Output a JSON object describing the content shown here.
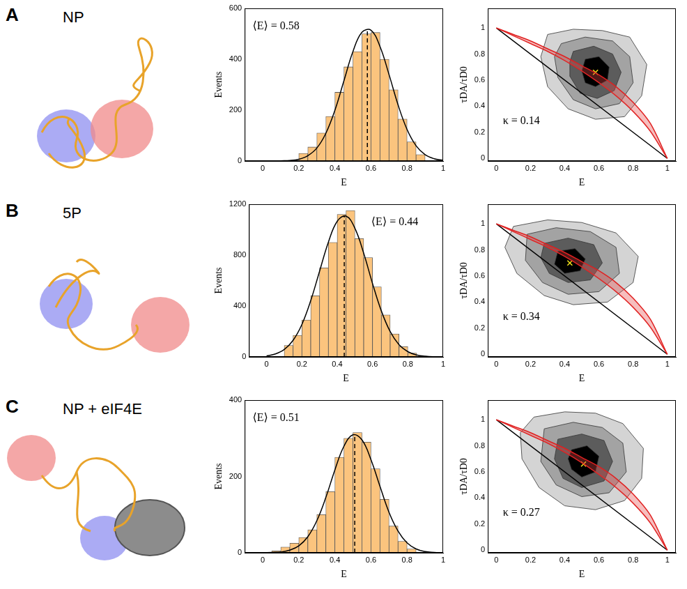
{
  "chart_data": [
    {
      "type": "histogram",
      "panel": "A",
      "title": "NP",
      "xlabel": "E",
      "ylabel": "Events",
      "color": "#fbc47e",
      "grid": false,
      "bins": [
        0.2,
        0.25,
        0.3,
        0.35,
        0.4,
        0.45,
        0.5,
        0.55,
        0.6,
        0.65,
        0.7,
        0.75,
        0.8,
        0.85,
        0.9
      ],
      "counts": [
        30,
        55,
        110,
        175,
        270,
        370,
        430,
        500,
        505,
        400,
        280,
        165,
        75,
        25
      ],
      "fit": {
        "x": [
          0,
          0.05,
          0.1,
          0.15,
          0.2,
          0.25,
          0.3,
          0.35,
          0.4,
          0.45,
          0.5,
          0.55,
          0.6,
          0.65,
          0.7,
          0.75,
          0.8,
          0.85,
          0.9,
          0.95,
          1
        ],
        "y": [
          0,
          0,
          1,
          2,
          7,
          21,
          51,
          109,
          199,
          315,
          430,
          506,
          514,
          450,
          340,
          221,
          124,
          60,
          25,
          9,
          3
        ]
      },
      "mean": 0.58,
      "annotation": "⟨E⟩ = 0.58",
      "xlim": [
        -0.1,
        1
      ],
      "xticks": [
        0,
        0.2,
        0.4,
        0.6,
        0.8,
        1
      ],
      "ylim": [
        0,
        600
      ],
      "yticks": [
        0,
        200,
        400,
        600
      ]
    },
    {
      "type": "contour",
      "xlabel": "E",
      "ylabel": "τDA/τD0",
      "grid": false,
      "xlim": [
        -0.05,
        1.05
      ],
      "xticks": [
        0,
        0.2,
        0.4,
        0.6,
        0.8,
        1
      ],
      "ylim": [
        -0.02,
        1.15
      ],
      "yticks": [
        0,
        0.2,
        0.4,
        0.6,
        0.8,
        1
      ],
      "contours": [
        [
          [
            0.3,
            0.95
          ],
          [
            0.45,
            0.99
          ],
          [
            0.62,
            0.98
          ],
          [
            0.78,
            0.93
          ],
          [
            0.88,
            0.72
          ],
          [
            0.85,
            0.48
          ],
          [
            0.75,
            0.32
          ],
          [
            0.58,
            0.3
          ],
          [
            0.42,
            0.38
          ],
          [
            0.3,
            0.55
          ],
          [
            0.26,
            0.78
          ]
        ],
        [
          [
            0.38,
            0.88
          ],
          [
            0.52,
            0.93
          ],
          [
            0.68,
            0.9
          ],
          [
            0.78,
            0.78
          ],
          [
            0.8,
            0.58
          ],
          [
            0.72,
            0.42
          ],
          [
            0.58,
            0.38
          ],
          [
            0.45,
            0.45
          ],
          [
            0.36,
            0.62
          ],
          [
            0.34,
            0.78
          ]
        ],
        [
          [
            0.45,
            0.82
          ],
          [
            0.57,
            0.86
          ],
          [
            0.68,
            0.8
          ],
          [
            0.73,
            0.66
          ],
          [
            0.69,
            0.52
          ],
          [
            0.59,
            0.46
          ],
          [
            0.49,
            0.5
          ],
          [
            0.43,
            0.63
          ],
          [
            0.43,
            0.74
          ]
        ],
        [
          [
            0.52,
            0.76
          ],
          [
            0.6,
            0.78
          ],
          [
            0.66,
            0.7
          ],
          [
            0.65,
            0.6
          ],
          [
            0.58,
            0.55
          ],
          [
            0.52,
            0.58
          ],
          [
            0.5,
            0.67
          ]
        ]
      ],
      "static_line": [
        [
          0,
          1
        ],
        [
          1,
          0
        ]
      ],
      "dynamic_line_upper": [
        [
          0,
          1
        ],
        [
          0.1,
          0.95
        ],
        [
          0.2,
          0.9
        ],
        [
          0.3,
          0.84
        ],
        [
          0.4,
          0.78
        ],
        [
          0.5,
          0.71
        ],
        [
          0.6,
          0.64
        ],
        [
          0.7,
          0.55
        ],
        [
          0.8,
          0.43
        ],
        [
          0.9,
          0.27
        ],
        [
          1,
          0
        ]
      ],
      "dynamic_line_lower": [
        [
          0,
          1
        ],
        [
          0.1,
          0.94
        ],
        [
          0.2,
          0.88
        ],
        [
          0.3,
          0.82
        ],
        [
          0.4,
          0.75
        ],
        [
          0.5,
          0.67
        ],
        [
          0.6,
          0.58
        ],
        [
          0.7,
          0.48
        ],
        [
          0.8,
          0.36
        ],
        [
          0.9,
          0.21
        ],
        [
          1,
          0
        ]
      ],
      "mean_point": [
        0.58,
        0.66
      ],
      "annotation": "κ = 0.14"
    },
    {
      "type": "histogram",
      "panel": "B",
      "title": "5P",
      "xlabel": "E",
      "ylabel": "Events",
      "color": "#fbc47e",
      "grid": false,
      "bins": [
        0.1,
        0.15,
        0.2,
        0.25,
        0.3,
        0.35,
        0.4,
        0.45,
        0.5,
        0.55,
        0.6,
        0.65,
        0.7,
        0.75,
        0.8,
        0.85
      ],
      "counts": [
        90,
        170,
        290,
        480,
        700,
        900,
        1120,
        1150,
        930,
        780,
        550,
        330,
        180,
        80,
        30
      ],
      "fit": {
        "x": [
          0,
          0.05,
          0.1,
          0.15,
          0.2,
          0.25,
          0.3,
          0.35,
          0.4,
          0.45,
          0.5,
          0.55,
          0.6,
          0.65,
          0.7,
          0.75,
          0.8,
          0.85,
          0.9,
          0.95,
          1
        ],
        "y": [
          8,
          23,
          58,
          130,
          255,
          442,
          673,
          902,
          1066,
          1107,
          1012,
          815,
          577,
          361,
          199,
          96,
          41,
          15,
          5,
          1,
          0
        ]
      },
      "mean": 0.44,
      "annotation": "⟨E⟩ = 0.44",
      "xlim": [
        -0.1,
        1
      ],
      "xticks": [
        0,
        0.2,
        0.4,
        0.6,
        0.8,
        1
      ],
      "ylim": [
        0,
        1200
      ],
      "yticks": [
        0,
        400,
        800,
        1200
      ]
    },
    {
      "type": "contour",
      "xlabel": "E",
      "ylabel": "τDA/τD0",
      "grid": false,
      "xlim": [
        -0.05,
        1.05
      ],
      "xticks": [
        0,
        0.2,
        0.4,
        0.6,
        0.8,
        1
      ],
      "ylim": [
        -0.02,
        1.15
      ],
      "yticks": [
        0,
        0.2,
        0.4,
        0.6,
        0.8,
        1
      ],
      "contours": [
        [
          [
            0.1,
            0.98
          ],
          [
            0.3,
            1.03
          ],
          [
            0.5,
            1.01
          ],
          [
            0.7,
            0.93
          ],
          [
            0.83,
            0.75
          ],
          [
            0.8,
            0.55
          ],
          [
            0.65,
            0.4
          ],
          [
            0.45,
            0.38
          ],
          [
            0.28,
            0.45
          ],
          [
            0.12,
            0.62
          ],
          [
            0.05,
            0.82
          ]
        ],
        [
          [
            0.18,
            0.92
          ],
          [
            0.35,
            0.97
          ],
          [
            0.55,
            0.94
          ],
          [
            0.7,
            0.82
          ],
          [
            0.72,
            0.62
          ],
          [
            0.6,
            0.48
          ],
          [
            0.42,
            0.46
          ],
          [
            0.27,
            0.55
          ],
          [
            0.17,
            0.72
          ]
        ],
        [
          [
            0.28,
            0.85
          ],
          [
            0.42,
            0.89
          ],
          [
            0.57,
            0.84
          ],
          [
            0.62,
            0.7
          ],
          [
            0.55,
            0.57
          ],
          [
            0.42,
            0.55
          ],
          [
            0.31,
            0.62
          ],
          [
            0.26,
            0.74
          ]
        ],
        [
          [
            0.36,
            0.79
          ],
          [
            0.46,
            0.81
          ],
          [
            0.52,
            0.73
          ],
          [
            0.49,
            0.64
          ],
          [
            0.4,
            0.62
          ],
          [
            0.34,
            0.69
          ]
        ]
      ],
      "static_line": [
        [
          0,
          1
        ],
        [
          1,
          0
        ]
      ],
      "dynamic_line_upper": [
        [
          0,
          1
        ],
        [
          0.1,
          0.95
        ],
        [
          0.2,
          0.9
        ],
        [
          0.3,
          0.84
        ],
        [
          0.4,
          0.78
        ],
        [
          0.5,
          0.71
        ],
        [
          0.6,
          0.64
        ],
        [
          0.7,
          0.55
        ],
        [
          0.8,
          0.43
        ],
        [
          0.9,
          0.27
        ],
        [
          1,
          0
        ]
      ],
      "dynamic_line_lower": [
        [
          0,
          1
        ],
        [
          0.1,
          0.94
        ],
        [
          0.2,
          0.88
        ],
        [
          0.3,
          0.82
        ],
        [
          0.4,
          0.75
        ],
        [
          0.5,
          0.67
        ],
        [
          0.6,
          0.58
        ],
        [
          0.7,
          0.48
        ],
        [
          0.8,
          0.36
        ],
        [
          0.9,
          0.21
        ],
        [
          1,
          0
        ]
      ],
      "mean_point": [
        0.43,
        0.7
      ],
      "annotation": "κ = 0.34"
    },
    {
      "type": "histogram",
      "panel": "C",
      "title": "NP + eIF4E",
      "xlabel": "E",
      "ylabel": "Events",
      "color": "#fbc47e",
      "grid": false,
      "bins": [
        0.05,
        0.1,
        0.15,
        0.2,
        0.25,
        0.3,
        0.35,
        0.4,
        0.45,
        0.5,
        0.55,
        0.6,
        0.65,
        0.7,
        0.75,
        0.8,
        0.85
      ],
      "counts": [
        5,
        15,
        25,
        40,
        60,
        100,
        160,
        250,
        300,
        315,
        290,
        220,
        140,
        70,
        30,
        10
      ],
      "fit": {
        "x": [
          0,
          0.05,
          0.1,
          0.15,
          0.2,
          0.25,
          0.3,
          0.35,
          0.4,
          0.45,
          0.5,
          0.55,
          0.6,
          0.65,
          0.7,
          0.75,
          0.8,
          0.85,
          0.9,
          0.95,
          1
        ],
        "y": [
          0,
          1,
          2,
          7,
          18,
          42,
          84,
          145,
          217,
          279,
          309,
          296,
          244,
          174,
          106,
          57,
          26,
          10,
          3,
          1,
          0
        ]
      },
      "mean": 0.51,
      "annotation": "⟨E⟩ = 0.51",
      "xlim": [
        -0.1,
        1
      ],
      "xticks": [
        0,
        0.2,
        0.4,
        0.6,
        0.8,
        1
      ],
      "ylim": [
        0,
        400
      ],
      "yticks": [
        0,
        200,
        400
      ]
    },
    {
      "type": "contour",
      "xlabel": "E",
      "ylabel": "τDA/τD0",
      "grid": false,
      "xlim": [
        -0.05,
        1.05
      ],
      "xticks": [
        0,
        0.2,
        0.4,
        0.6,
        0.8,
        1
      ],
      "ylim": [
        -0.02,
        1.15
      ],
      "yticks": [
        0,
        0.2,
        0.4,
        0.6,
        0.8,
        1
      ],
      "contours": [
        [
          [
            0.22,
            1.02
          ],
          [
            0.4,
            1.06
          ],
          [
            0.58,
            1.05
          ],
          [
            0.74,
            0.97
          ],
          [
            0.86,
            0.78
          ],
          [
            0.85,
            0.55
          ],
          [
            0.75,
            0.38
          ],
          [
            0.58,
            0.31
          ],
          [
            0.4,
            0.34
          ],
          [
            0.25,
            0.48
          ],
          [
            0.15,
            0.7
          ],
          [
            0.14,
            0.9
          ]
        ],
        [
          [
            0.28,
            0.93
          ],
          [
            0.45,
            0.98
          ],
          [
            0.62,
            0.94
          ],
          [
            0.74,
            0.82
          ],
          [
            0.76,
            0.6
          ],
          [
            0.66,
            0.44
          ],
          [
            0.5,
            0.41
          ],
          [
            0.35,
            0.5
          ],
          [
            0.26,
            0.68
          ]
        ],
        [
          [
            0.36,
            0.85
          ],
          [
            0.5,
            0.89
          ],
          [
            0.63,
            0.84
          ],
          [
            0.68,
            0.68
          ],
          [
            0.63,
            0.53
          ],
          [
            0.5,
            0.48
          ],
          [
            0.39,
            0.55
          ],
          [
            0.34,
            0.7
          ]
        ],
        [
          [
            0.44,
            0.77
          ],
          [
            0.53,
            0.8
          ],
          [
            0.6,
            0.72
          ],
          [
            0.58,
            0.6
          ],
          [
            0.5,
            0.56
          ],
          [
            0.44,
            0.62
          ],
          [
            0.42,
            0.7
          ]
        ]
      ],
      "static_line": [
        [
          0,
          1
        ],
        [
          1,
          0
        ]
      ],
      "dynamic_line_upper": [
        [
          0,
          1
        ],
        [
          0.1,
          0.95
        ],
        [
          0.2,
          0.9
        ],
        [
          0.3,
          0.84
        ],
        [
          0.4,
          0.78
        ],
        [
          0.5,
          0.71
        ],
        [
          0.6,
          0.64
        ],
        [
          0.7,
          0.55
        ],
        [
          0.8,
          0.43
        ],
        [
          0.9,
          0.27
        ],
        [
          1,
          0
        ]
      ],
      "dynamic_line_lower": [
        [
          0,
          1
        ],
        [
          0.1,
          0.94
        ],
        [
          0.2,
          0.88
        ],
        [
          0.3,
          0.82
        ],
        [
          0.4,
          0.75
        ],
        [
          0.5,
          0.67
        ],
        [
          0.6,
          0.58
        ],
        [
          0.7,
          0.48
        ],
        [
          0.8,
          0.36
        ],
        [
          0.9,
          0.21
        ],
        [
          1,
          0
        ]
      ],
      "mean_point": [
        0.51,
        0.66
      ],
      "annotation": "κ = 0.27"
    }
  ]
}
